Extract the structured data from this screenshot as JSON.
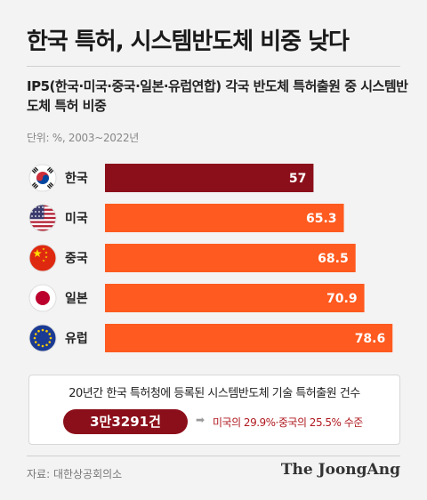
{
  "title": "한국 특허, 시스템반도체 비중 낮다",
  "subtitle": "IP5(한국·미국·중국·일본·유럽연합) 각국 반도체 특허출원 중 시스템반도체 특허 비중",
  "unit": "단위: %, 2003~2022년",
  "colors": {
    "highlight": "#8b0f1a",
    "bar": "#ff5a1f",
    "background": "#f3f3f3"
  },
  "chart_data": {
    "type": "bar",
    "orientation": "horizontal",
    "categories": [
      "한국",
      "미국",
      "중국",
      "일본",
      "유럽"
    ],
    "values": [
      57,
      65.3,
      68.5,
      70.9,
      78.6
    ],
    "value_labels": [
      "57",
      "65.3",
      "68.5",
      "70.9",
      "78.6"
    ],
    "icons": [
      "korea-flag-icon",
      "usa-flag-icon",
      "china-flag-icon",
      "japan-flag-icon",
      "eu-flag-icon"
    ],
    "bar_colors": [
      "#8b0f1a",
      "#ff5a1f",
      "#ff5a1f",
      "#ff5a1f",
      "#ff5a1f"
    ],
    "xlim": [
      0,
      80
    ],
    "grid": false
  },
  "summary": {
    "title": "20년간 한국 특허청에 등록된 시스템반도체 기술 특허출원 건수",
    "count": "3만3291건",
    "arrow": "➡",
    "comparison": "미국의 29.9%·중국의 25.5% 수준"
  },
  "source": "자료: 대한상공회의소",
  "brand": "The JoongAng"
}
